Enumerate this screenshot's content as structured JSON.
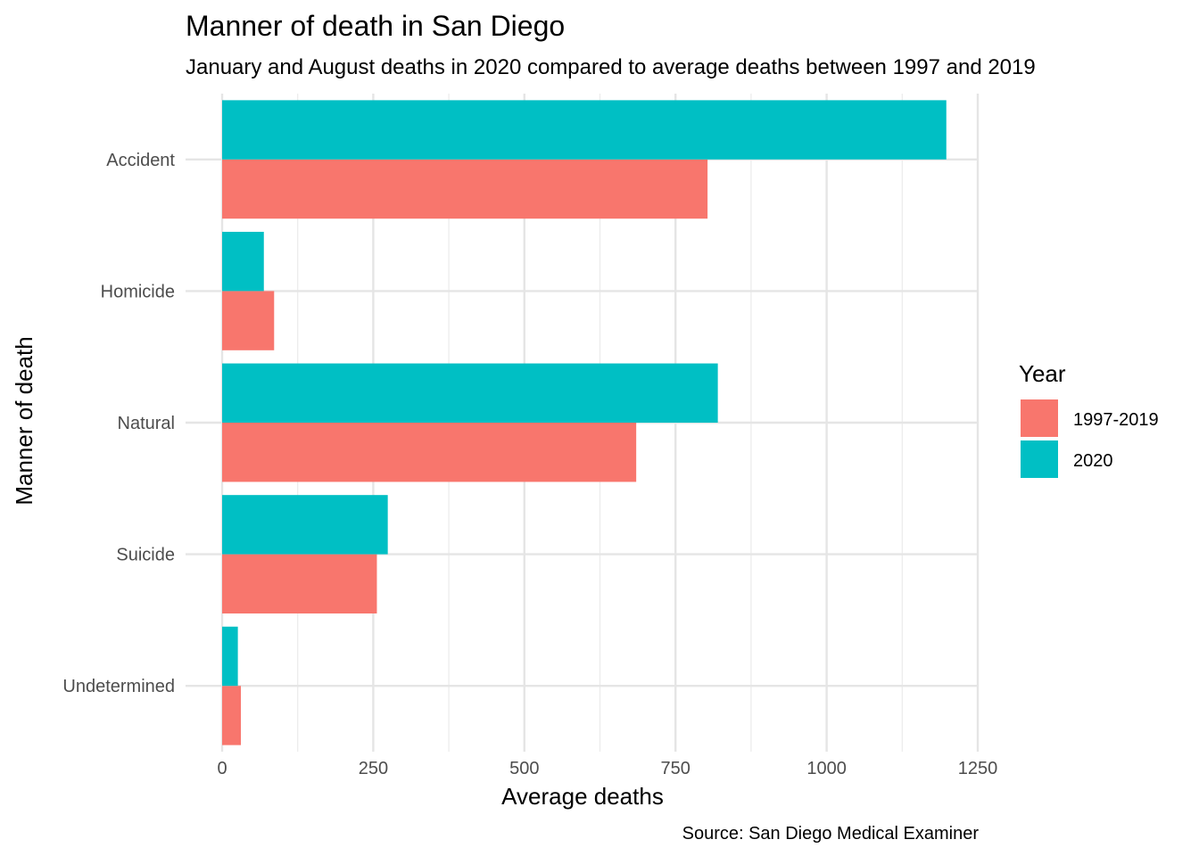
{
  "chart_data": {
    "type": "bar",
    "orientation": "horizontal",
    "title": "Manner of death in San Diego",
    "subtitle": "January and August deaths in 2020 compared to average deaths between 1997 and 2019",
    "xlabel": "Average deaths",
    "ylabel": "Manner of death",
    "caption": "Source: San Diego Medical Examiner",
    "categories": [
      "Accident",
      "Homicide",
      "Natural",
      "Suicide",
      "Undetermined"
    ],
    "series": [
      {
        "name": "1997-2019",
        "color": "#F8766D",
        "values": [
          803,
          86,
          685,
          256,
          31
        ]
      },
      {
        "name": "2020",
        "color": "#00BFC4",
        "values": [
          1198,
          69,
          820,
          274,
          26
        ]
      }
    ],
    "xlim": [
      -60,
      1300
    ],
    "xticks": [
      0,
      250,
      500,
      750,
      1000,
      1250
    ],
    "xtick_labels": [
      "0",
      "250",
      "500",
      "750",
      "1000",
      "1250"
    ],
    "grid": true,
    "legend": {
      "title": "Year",
      "position": "right"
    }
  }
}
